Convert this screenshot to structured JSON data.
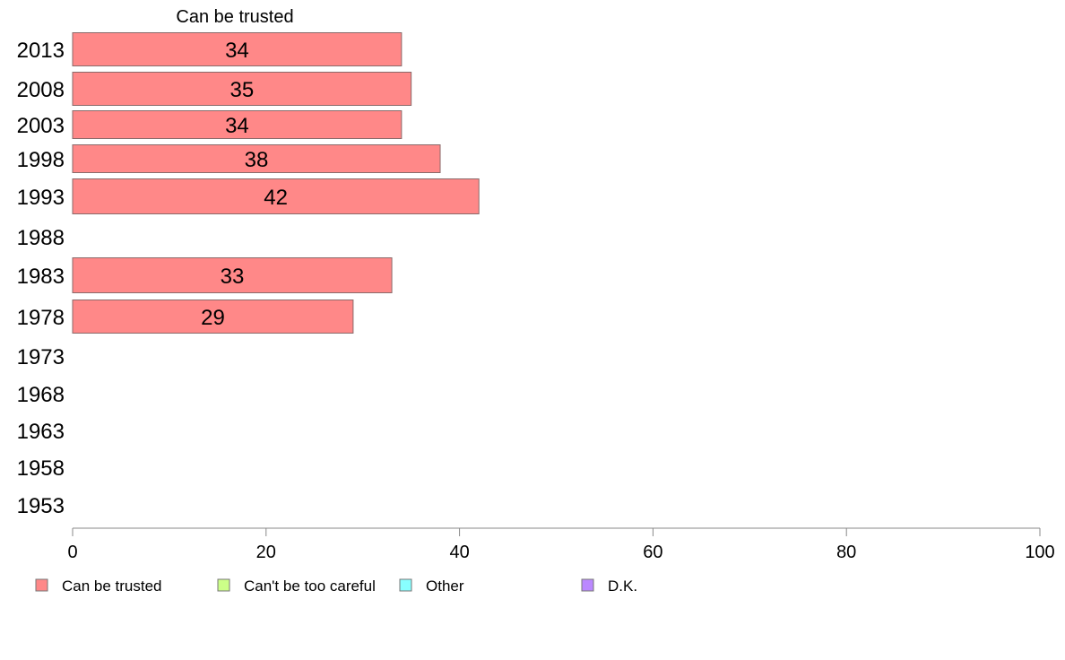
{
  "chart_data": {
    "type": "bar",
    "orientation": "horizontal",
    "title": "Can be trusted",
    "categories": [
      "2013",
      "2008",
      "2003",
      "1998",
      "1993",
      "1988",
      "1983",
      "1978",
      "1973",
      "1968",
      "1963",
      "1958",
      "1953"
    ],
    "series": [
      {
        "name": "Can be trusted",
        "color": "#ff8888",
        "values": [
          34,
          35,
          34,
          38,
          42,
          null,
          33,
          29,
          null,
          null,
          null,
          null,
          null
        ]
      }
    ],
    "bar_labels": [
      "34",
      "35",
      "34",
      "38",
      "42",
      "",
      "33",
      "29",
      "",
      "",
      "",
      "",
      ""
    ],
    "xlim": [
      0,
      100
    ],
    "x_ticks": [
      0,
      20,
      40,
      60,
      80,
      100
    ],
    "x_tick_labels": [
      "0",
      "20",
      "40",
      "60",
      "80",
      "100"
    ],
    "grid": false,
    "legend_position": "bottom",
    "legend": [
      {
        "label": "Can be trusted",
        "color": "#ff8888"
      },
      {
        "label": "Can't be too careful",
        "color": "#ccff88"
      },
      {
        "label": "Other",
        "color": "#88ffff"
      },
      {
        "label": "D.K.",
        "color": "#bb88ff"
      }
    ]
  }
}
